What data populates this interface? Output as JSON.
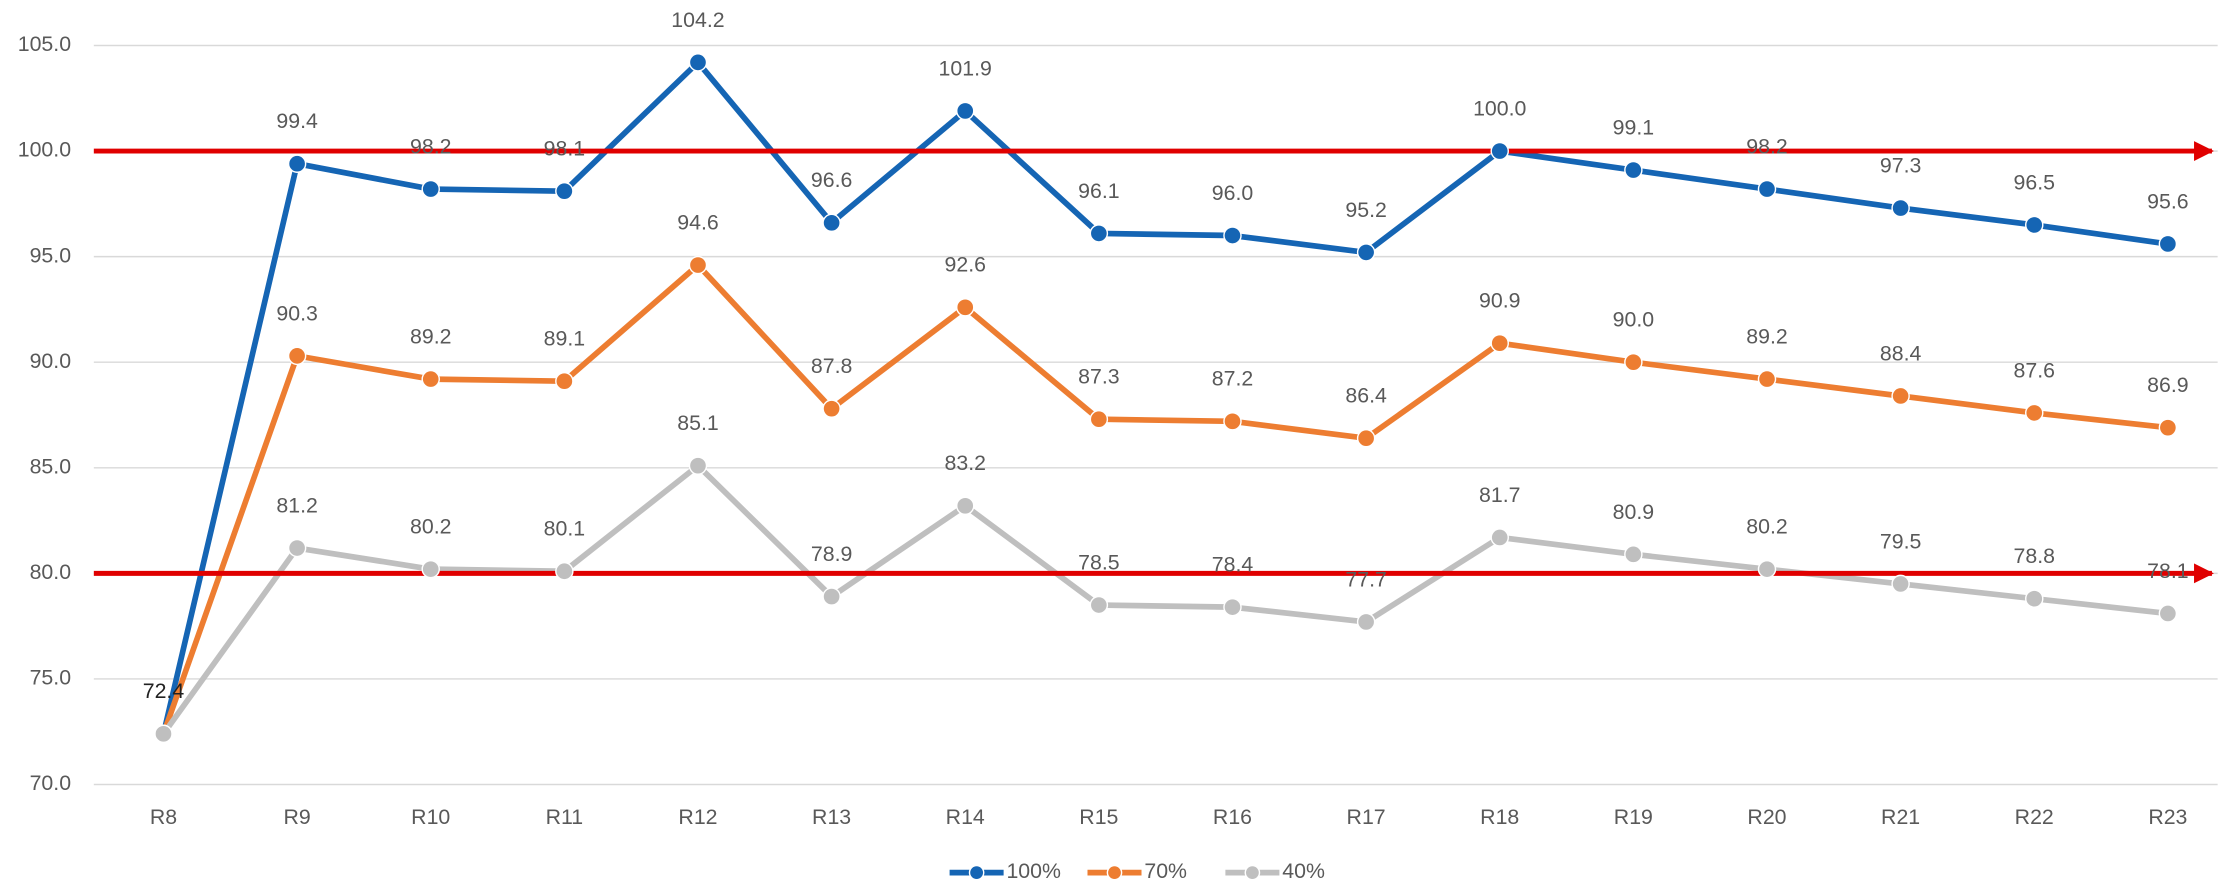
{
  "chart_data": {
    "type": "line",
    "categories": [
      "R8",
      "R9",
      "R10",
      "R11",
      "R12",
      "R13",
      "R14",
      "R15",
      "R16",
      "R17",
      "R18",
      "R19",
      "R20",
      "R21",
      "R22",
      "R23"
    ],
    "series": [
      {
        "name": "100%",
        "color": "#1565b4",
        "values": [
          72.4,
          99.4,
          98.2,
          98.1,
          104.2,
          96.6,
          101.9,
          96.1,
          96.0,
          95.2,
          100.0,
          99.1,
          98.2,
          97.3,
          96.5,
          95.6
        ],
        "value_labels": [
          null,
          "99.4",
          "98.2",
          "98.1",
          "104.2",
          "96.6",
          "101.9",
          "96.1",
          "96.0",
          "95.2",
          "100.0",
          "99.1",
          "98.2",
          "97.3",
          "96.5",
          "95.6"
        ]
      },
      {
        "name": "70%",
        "color": "#ed7d31",
        "values": [
          72.4,
          90.3,
          89.2,
          89.1,
          94.6,
          87.8,
          92.6,
          87.3,
          87.2,
          86.4,
          90.9,
          90.0,
          89.2,
          88.4,
          87.6,
          86.9
        ],
        "value_labels": [
          null,
          "90.3",
          "89.2",
          "89.1",
          "94.6",
          "87.8",
          "92.6",
          "87.3",
          "87.2",
          "86.4",
          "90.9",
          "90.0",
          "89.2",
          "88.4",
          "87.6",
          "86.9"
        ]
      },
      {
        "name": "40%",
        "color": "#bfbfbf",
        "values": [
          72.4,
          81.2,
          80.2,
          80.1,
          85.1,
          78.9,
          83.2,
          78.5,
          78.4,
          77.7,
          81.7,
          80.9,
          80.2,
          79.5,
          78.8,
          78.1
        ],
        "value_labels": [
          "72.4",
          "81.2",
          "80.2",
          "80.1",
          "85.1",
          "78.9",
          "83.2",
          "78.5",
          "78.4",
          "77.7",
          "81.7",
          "80.9",
          "80.2",
          "79.5",
          "78.8",
          "78.1"
        ]
      }
    ],
    "ylim": [
      70,
      105
    ],
    "yticks": [
      {
        "value": 70,
        "label": "70.0"
      },
      {
        "value": 75,
        "label": "75.0"
      },
      {
        "value": 80,
        "label": "80.0"
      },
      {
        "value": 85,
        "label": "85.0"
      },
      {
        "value": 90,
        "label": "90.0"
      },
      {
        "value": 95,
        "label": "95.0"
      },
      {
        "value": 100,
        "label": "100.0"
      },
      {
        "value": 105,
        "label": "105.0"
      }
    ],
    "grid": true,
    "legend": "bottom",
    "reference_lines": [
      {
        "value": 100,
        "color": "#e00000"
      },
      {
        "value": 80,
        "color": "#e00000"
      }
    ]
  }
}
